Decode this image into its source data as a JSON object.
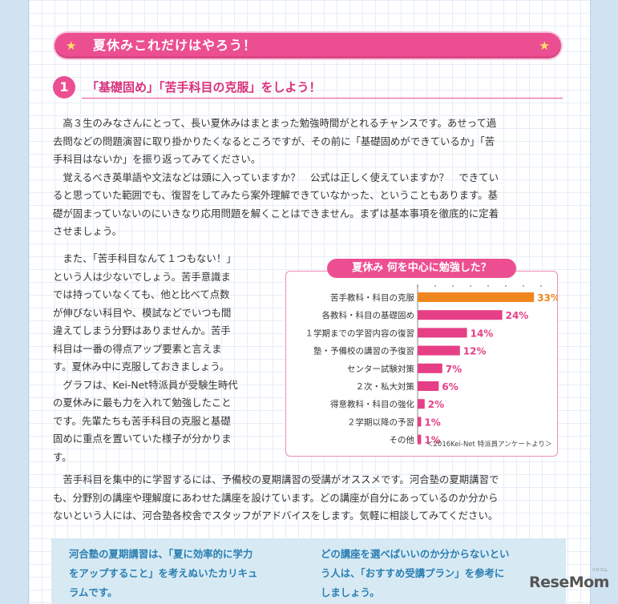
{
  "banner": {
    "title": "夏休みこれだけはやろう！",
    "star_left": "★",
    "star_right": "★"
  },
  "section": {
    "number": "1",
    "title": "「基礎固め」「苦手科目の克服」をしよう！"
  },
  "paragraph1": "　高３生のみなさんにとって、長い夏休みはまとまった勉強時間がとれるチャンスです。あせって過\n去問などの問題演習に取り掛かりたくなるところですが、その前に「基礎固めができているか」「苦\n手科目はないか」を振り返ってみてください。\n　覚えるべき英単語や文法などは頭に入っていますか？　公式は正しく使えていますか？　できてい\nると思っていた範囲でも、復習をしてみたら案外理解できていなかった、ということもあります。基\n礎が固まっていないのにいきなり応用問題を解くことはできません。まずは基本事項を徹底的に定着\nさせましょう。",
  "paragraph2": "　また、「苦手科目なんて１つもない！」\nという人は少ないでしょう。苦手意識ま\nでは持っていなくても、他と比べて点数\nが伸びない科目や、模試などでいつも間\n違えてしまう分野はありませんか。苦手\n科目は一番の得点アップ要素と言えま\nす。夏休み中に克服しておきましょう。\n　グラフは、Kei-Net特派員が受験生時代\nの夏休みに最も力を入れて勉強したこと\nです。先輩たちも苦手科目の克服と基礎\n固めに重点を置いていた様子が分かりま\nす。",
  "paragraph3": "　苦手科目を集中的に学習するには、予備校の夏期講習の受講がオススメです。河合塾の夏期講習で\nも、分野別の講座や理解度にあわせた講座を設けています。どの講座が自分にあっているのか分から\nないという人には、河合塾各校舎でスタッフがアドバイスをします。気軽に相談してみてください。",
  "chart_data": {
    "type": "bar",
    "orientation": "horizontal",
    "title": "夏休み 何を中心に勉強した？",
    "categories": [
      "苦手教科・科目の克服",
      "各教科・科目の基礎固め",
      "１学期までの学習内容の復習",
      "塾・予備校の講習の予復習",
      "センター試験対策",
      "２次・私大対策",
      "得意教科・科目の強化",
      "２学期以降の予習",
      "その他"
    ],
    "values": [
      33,
      24,
      14,
      12,
      7,
      6,
      2,
      1,
      1
    ],
    "value_labels": [
      "33%",
      "24%",
      "14%",
      "12%",
      "7%",
      "6%",
      "2%",
      "1%",
      "1%"
    ],
    "xlim": [
      0,
      35
    ],
    "colors": {
      "highlight": "#f0861f",
      "bar": "#e63f86",
      "label_highlight": "#f0861f",
      "label": "#e63f86"
    },
    "note": "＜2016Kei-Net 特派員アンケートより＞"
  },
  "info": {
    "left": "河合塾の夏期講習は、「夏に効率的に学力\nをアップすること」を考えぬいたカリキュ\nラムです。",
    "right": "どの講座を選べばいいのか分からないとい\nう人は、「おすすめ受講プラン」を参考に\nしましょう。"
  },
  "watermark": {
    "text": "ReseMom",
    "sub": "リセマム"
  }
}
